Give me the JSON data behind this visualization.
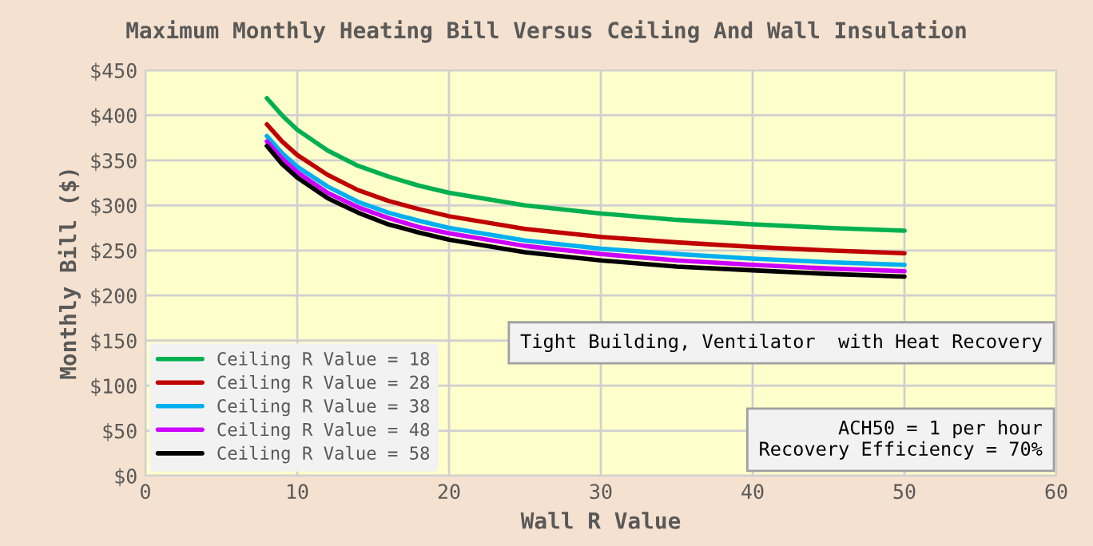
{
  "chart_data": {
    "type": "line",
    "title": "Maximum Monthly Heating Bill Versus Ceiling And Wall Insulation",
    "xlabel": "Wall R Value",
    "ylabel": "Monthly Bill ($)",
    "x": [
      8,
      9,
      10,
      12,
      14,
      16,
      18,
      20,
      25,
      30,
      35,
      40,
      45,
      50
    ],
    "series": [
      {
        "name": "Ceiling R Value = 18",
        "color": "#00b050",
        "values": [
          419,
          400,
          384,
          361,
          344,
          332,
          322,
          314,
          300,
          291,
          284,
          279,
          275,
          272
        ]
      },
      {
        "name": "Ceiling R Value = 28",
        "color": "#c00000",
        "values": [
          390,
          371,
          356,
          334,
          317,
          305,
          296,
          288,
          274,
          265,
          259,
          254,
          250,
          247
        ]
      },
      {
        "name": "Ceiling R Value = 38",
        "color": "#00b0f0",
        "values": [
          377,
          358,
          343,
          321,
          304,
          292,
          283,
          275,
          261,
          252,
          246,
          241,
          237,
          234
        ]
      },
      {
        "name": "Ceiling R Value = 48",
        "color": "#cc00ff",
        "values": [
          371,
          352,
          337,
          314,
          298,
          286,
          276,
          269,
          255,
          246,
          239,
          234,
          230,
          227
        ]
      },
      {
        "name": "Ceiling R Value = 58",
        "color": "#000000",
        "values": [
          366,
          346,
          331,
          308,
          292,
          279,
          270,
          262,
          248,
          239,
          232,
          228,
          224,
          221
        ]
      }
    ],
    "xlim": [
      0,
      60
    ],
    "xticks": [
      0,
      10,
      20,
      30,
      40,
      50,
      60
    ],
    "ylim": [
      0,
      450
    ],
    "yticks": [
      {
        "value": 0,
        "label": "$0"
      },
      {
        "value": 50,
        "label": "$50"
      },
      {
        "value": 100,
        "label": "$100"
      },
      {
        "value": 150,
        "label": "$150"
      },
      {
        "value": 200,
        "label": "$200"
      },
      {
        "value": 250,
        "label": "$250"
      },
      {
        "value": 300,
        "label": "$300"
      },
      {
        "value": 350,
        "label": "$350"
      },
      {
        "value": 400,
        "label": "$400"
      },
      {
        "value": 450,
        "label": "$450"
      }
    ],
    "grid": true,
    "legend": "bottom left",
    "marker": "none",
    "line_style": "solid",
    "annotations": [
      "Tight Building, Ventilator  with Heat Recovery",
      "ACH50 = 1 per hour\nRecovery Efficiency = 70%"
    ]
  }
}
